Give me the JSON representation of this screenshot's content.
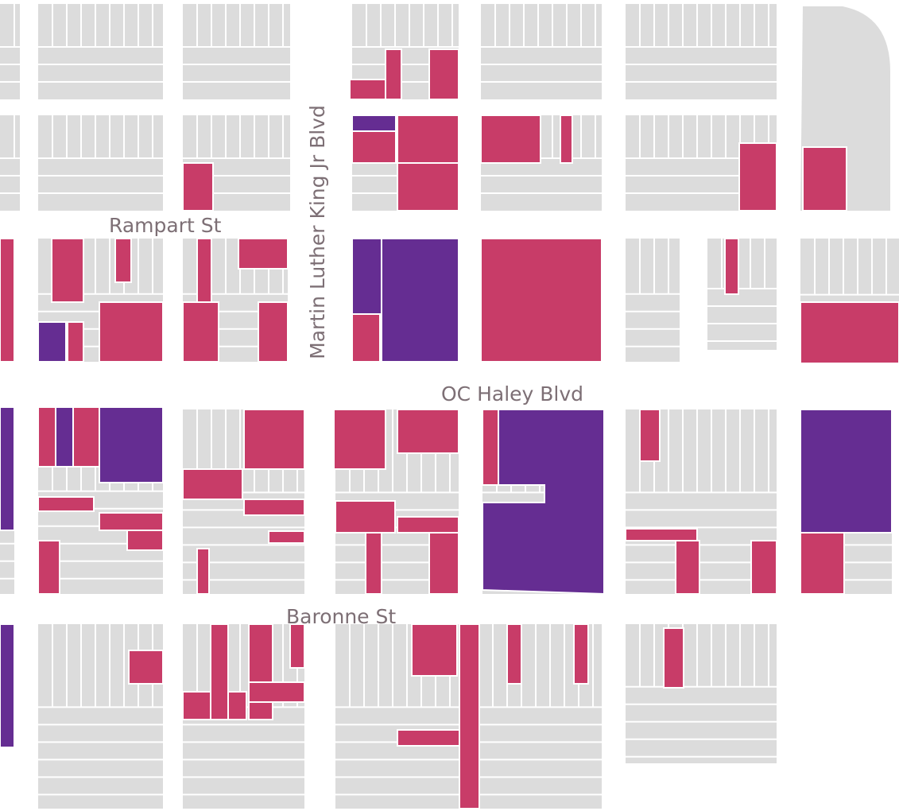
{
  "streets": [
    "Rampart St",
    "Martin Luther King Jr Blvd",
    "OC Haley Blvd",
    "Baronne St"
  ]
}
